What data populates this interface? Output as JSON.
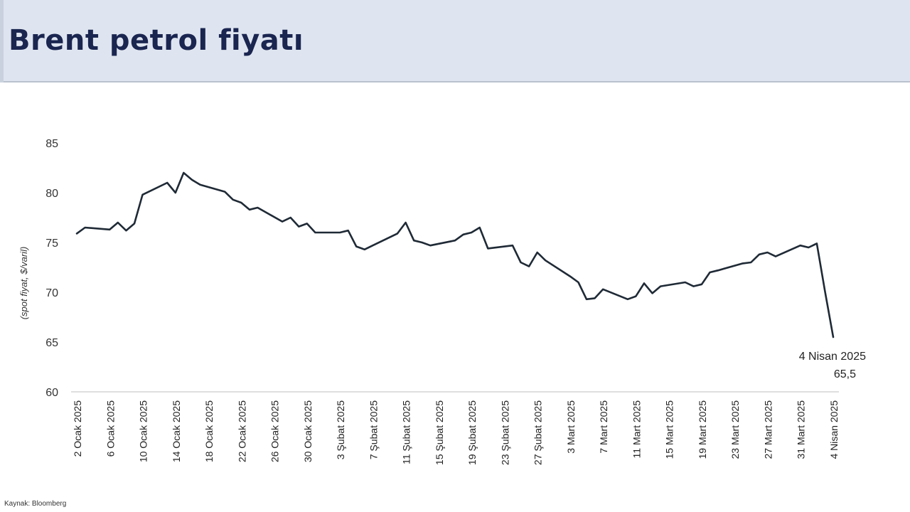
{
  "header": {
    "title": "Brent petrol fiyatı"
  },
  "source": "Kaynak: Bloomberg",
  "colors": {
    "header_bg": "#dfe5f0",
    "title": "#1a2550",
    "line": "#1f2a36"
  },
  "chart_data": {
    "type": "line",
    "title": "",
    "xlabel": "",
    "ylabel": "(spot fiyat, $/varil)",
    "ylim": [
      60,
      85
    ],
    "yticks": [
      60,
      65,
      70,
      75,
      80,
      85
    ],
    "grid": false,
    "legend": "none",
    "xticks": [
      "2 Ocak 2025",
      "6 Ocak 2025",
      "10 Ocak 2025",
      "14 Ocak 2025",
      "18 Ocak 2025",
      "22 Ocak 2025",
      "26 Ocak 2025",
      "30 Ocak 2025",
      "3 Şubat 2025",
      "7 Şubat 2025",
      "11 Şubat 2025",
      "15 Şubat 2025",
      "19 Şubat 2025",
      "23 Şubat 2025",
      "27 Şubat 2025",
      "3 Mart 2025",
      "7 Mart 2025",
      "11 Mart 2025",
      "15 Mart 2025",
      "19 Mart 2025",
      "23 Mart 2025",
      "27 Mart 2025",
      "31 Mart 2025",
      "4 Nisan 2025"
    ],
    "series": [
      {
        "name": "",
        "x": [
          "2025-01-02",
          "2025-01-03",
          "2025-01-06",
          "2025-01-07",
          "2025-01-08",
          "2025-01-09",
          "2025-01-10",
          "2025-01-13",
          "2025-01-14",
          "2025-01-15",
          "2025-01-16",
          "2025-01-17",
          "2025-01-20",
          "2025-01-21",
          "2025-01-22",
          "2025-01-23",
          "2025-01-24",
          "2025-01-27",
          "2025-01-28",
          "2025-01-29",
          "2025-01-30",
          "2025-01-31",
          "2025-02-03",
          "2025-02-04",
          "2025-02-05",
          "2025-02-06",
          "2025-02-07",
          "2025-02-10",
          "2025-02-11",
          "2025-02-12",
          "2025-02-13",
          "2025-02-14",
          "2025-02-17",
          "2025-02-18",
          "2025-02-19",
          "2025-02-20",
          "2025-02-21",
          "2025-02-24",
          "2025-02-25",
          "2025-02-26",
          "2025-02-27",
          "2025-02-28",
          "2025-03-03",
          "2025-03-04",
          "2025-03-05",
          "2025-03-06",
          "2025-03-07",
          "2025-03-10",
          "2025-03-11",
          "2025-03-12",
          "2025-03-13",
          "2025-03-14",
          "2025-03-17",
          "2025-03-18",
          "2025-03-19",
          "2025-03-20",
          "2025-03-21",
          "2025-03-24",
          "2025-03-25",
          "2025-03-26",
          "2025-03-27",
          "2025-03-28",
          "2025-03-31",
          "2025-04-01",
          "2025-04-02",
          "2025-04-03",
          "2025-04-04"
        ],
        "values": [
          75.9,
          76.5,
          76.3,
          77.0,
          76.2,
          76.9,
          79.8,
          81.0,
          80.0,
          82.0,
          81.3,
          80.8,
          80.1,
          79.3,
          79.0,
          78.3,
          78.5,
          77.1,
          77.5,
          76.6,
          76.9,
          76.0,
          76.0,
          76.2,
          74.6,
          74.3,
          74.7,
          75.9,
          77.0,
          75.2,
          75.0,
          74.7,
          75.2,
          75.8,
          76.0,
          76.5,
          74.4,
          74.7,
          73.0,
          72.6,
          74.0,
          73.2,
          71.6,
          71.0,
          69.3,
          69.4,
          70.3,
          69.3,
          69.6,
          70.9,
          69.9,
          70.6,
          71.0,
          70.6,
          70.8,
          72.0,
          72.2,
          72.9,
          73.0,
          73.8,
          74.0,
          73.6,
          74.7,
          74.5,
          74.9,
          70.1,
          65.5
        ]
      }
    ],
    "annotation": {
      "label": "4 Nisan 2025",
      "value": "65,5"
    }
  }
}
